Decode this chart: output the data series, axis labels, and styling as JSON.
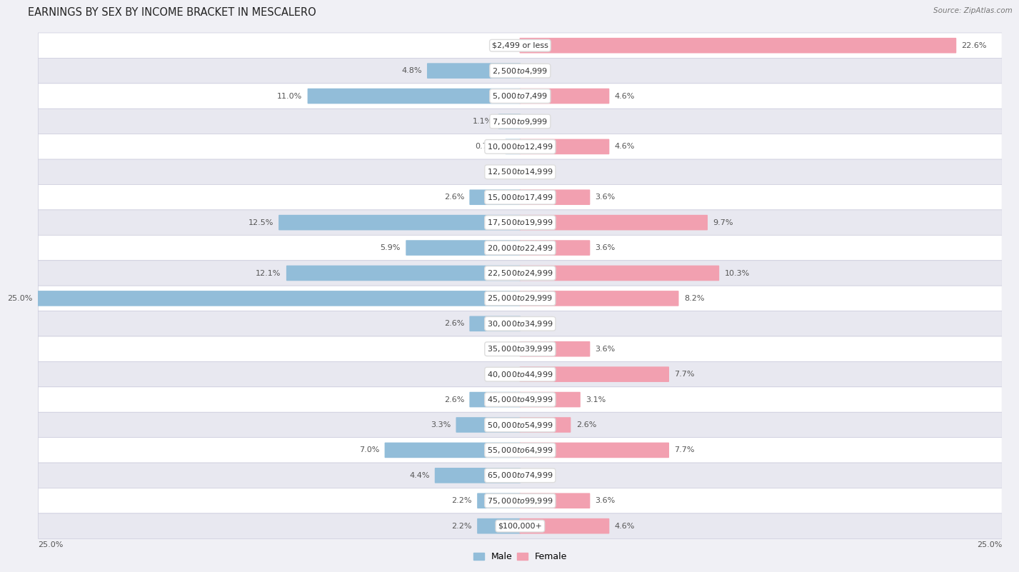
{
  "title": "EARNINGS BY SEX BY INCOME BRACKET IN MESCALERO",
  "source": "Source: ZipAtlas.com",
  "categories": [
    "$2,499 or less",
    "$2,500 to $4,999",
    "$5,000 to $7,499",
    "$7,500 to $9,999",
    "$10,000 to $12,499",
    "$12,500 to $14,999",
    "$15,000 to $17,499",
    "$17,500 to $19,999",
    "$20,000 to $22,499",
    "$22,500 to $24,999",
    "$25,000 to $29,999",
    "$30,000 to $34,999",
    "$35,000 to $39,999",
    "$40,000 to $44,999",
    "$45,000 to $49,999",
    "$50,000 to $54,999",
    "$55,000 to $64,999",
    "$65,000 to $74,999",
    "$75,000 to $99,999",
    "$100,000+"
  ],
  "male_values": [
    0.0,
    4.8,
    11.0,
    1.1,
    0.74,
    0.0,
    2.6,
    12.5,
    5.9,
    12.1,
    25.0,
    2.6,
    0.0,
    0.0,
    2.6,
    3.3,
    7.0,
    4.4,
    2.2,
    2.2
  ],
  "female_values": [
    22.6,
    0.0,
    4.6,
    0.0,
    4.6,
    0.0,
    3.6,
    9.7,
    3.6,
    10.3,
    8.2,
    0.0,
    3.6,
    7.7,
    3.1,
    2.6,
    7.7,
    0.0,
    3.6,
    4.6
  ],
  "male_color": "#92bdd9",
  "female_color": "#f2a0b0",
  "xlim": 25.0,
  "bar_height": 0.55,
  "background_color": "#f0f0f5",
  "row_color_odd": "#ffffff",
  "row_color_even": "#e8e8f0",
  "title_fontsize": 10.5,
  "label_fontsize": 8.0,
  "category_fontsize": 8.0,
  "legend_fontsize": 9,
  "bottom_label": "25.0%"
}
